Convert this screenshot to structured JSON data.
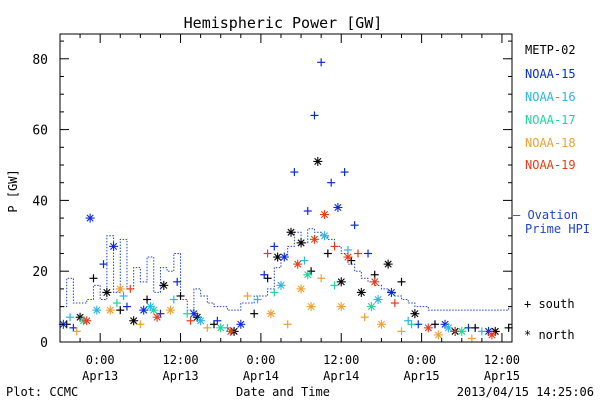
{
  "chart_data": {
    "type": "scatter",
    "title": "Hemispheric Power [GW]",
    "ylabel": "P [GW]",
    "xlabel": "Date and Time",
    "xlim": [
      "2013-04-12 18:00",
      "2013-04-15 13:30"
    ],
    "ylim": [
      0,
      87
    ],
    "y_ticks": [
      0,
      20,
      40,
      60,
      80
    ],
    "x_ticks": [
      {
        "t": "2013-04-13 00:00",
        "label1": "0:00",
        "label2": "Apr13"
      },
      {
        "t": "2013-04-13 12:00",
        "label1": "12:00",
        "label2": "Apr13"
      },
      {
        "t": "2013-04-14 00:00",
        "label1": "0:00",
        "label2": "Apr14"
      },
      {
        "t": "2013-04-14 12:00",
        "label1": "12:00",
        "label2": "Apr14"
      },
      {
        "t": "2013-04-15 00:00",
        "label1": "0:00",
        "label2": "Apr15"
      },
      {
        "t": "2013-04-15 12:00",
        "label1": "12:00",
        "label2": "Apr15"
      }
    ],
    "legend_placement": "right",
    "series": [
      {
        "name": "METP-02",
        "color": "#000000",
        "points": [
          [
            "2013-04-12 19:00",
            5,
            "+"
          ],
          [
            "2013-04-12 21:00",
            7,
            "*"
          ],
          [
            "2013-04-12 23:00",
            18,
            "+"
          ],
          [
            "2013-04-13 01:00",
            14,
            "*"
          ],
          [
            "2013-04-13 03:00",
            9,
            "+"
          ],
          [
            "2013-04-13 05:00",
            6,
            "*"
          ],
          [
            "2013-04-13 07:00",
            12,
            "+"
          ],
          [
            "2013-04-13 09:30",
            16,
            "*"
          ],
          [
            "2013-04-13 12:00",
            13,
            "+"
          ],
          [
            "2013-04-13 14:30",
            7,
            "*"
          ],
          [
            "2013-04-13 17:00",
            5,
            "+"
          ],
          [
            "2013-04-13 20:00",
            3,
            "*"
          ],
          [
            "2013-04-13 23:00",
            8,
            "+"
          ],
          [
            "2013-04-14 01:00",
            18,
            "+"
          ],
          [
            "2013-04-14 02:30",
            24,
            "*"
          ],
          [
            "2013-04-14 04:30",
            31,
            "*"
          ],
          [
            "2013-04-14 06:00",
            28,
            "*"
          ],
          [
            "2013-04-14 07:30",
            20,
            "+"
          ],
          [
            "2013-04-14 08:30",
            51,
            "*"
          ],
          [
            "2013-04-14 10:00",
            25,
            "+"
          ],
          [
            "2013-04-14 12:00",
            17,
            "*"
          ],
          [
            "2013-04-14 13:30",
            23,
            "+"
          ],
          [
            "2013-04-14 15:00",
            14,
            "*"
          ],
          [
            "2013-04-14 17:00",
            19,
            "+"
          ],
          [
            "2013-04-14 19:00",
            22,
            "*"
          ],
          [
            "2013-04-14 21:00",
            17,
            "+"
          ],
          [
            "2013-04-14 23:00",
            8,
            "*"
          ],
          [
            "2013-04-15 02:00",
            5,
            "+"
          ],
          [
            "2013-04-15 05:00",
            3,
            "*"
          ],
          [
            "2013-04-15 08:00",
            4,
            "+"
          ],
          [
            "2013-04-15 11:00",
            3,
            "*"
          ],
          [
            "2013-04-15 13:00",
            4,
            "+"
          ]
        ]
      },
      {
        "name": "NOAA-15",
        "color": "#0a2bd6",
        "points": [
          [
            "2013-04-12 18:30",
            5,
            "*"
          ],
          [
            "2013-04-12 20:00",
            4,
            "+"
          ],
          [
            "2013-04-12 22:30",
            35,
            "*"
          ],
          [
            "2013-04-13 00:30",
            22,
            "+"
          ],
          [
            "2013-04-13 02:00",
            27,
            "*"
          ],
          [
            "2013-04-13 04:00",
            10,
            "+"
          ],
          [
            "2013-04-13 06:30",
            9,
            "*"
          ],
          [
            "2013-04-13 09:00",
            8,
            "+"
          ],
          [
            "2013-04-13 11:30",
            17,
            "+"
          ],
          [
            "2013-04-13 14:00",
            8,
            "*"
          ],
          [
            "2013-04-13 17:30",
            6,
            "+"
          ],
          [
            "2013-04-13 21:00",
            5,
            "*"
          ],
          [
            "2013-04-14 00:30",
            19,
            "+"
          ],
          [
            "2013-04-14 02:00",
            27,
            "+"
          ],
          [
            "2013-04-14 03:30",
            24,
            "*"
          ],
          [
            "2013-04-14 05:00",
            48,
            "+"
          ],
          [
            "2013-04-14 07:00",
            37,
            "+"
          ],
          [
            "2013-04-14 08:00",
            64,
            "+"
          ],
          [
            "2013-04-14 09:00",
            79,
            "+"
          ],
          [
            "2013-04-14 10:30",
            45,
            "+"
          ],
          [
            "2013-04-14 11:30",
            38,
            "*"
          ],
          [
            "2013-04-14 12:30",
            48,
            "+"
          ],
          [
            "2013-04-14 14:00",
            33,
            "+"
          ],
          [
            "2013-04-14 16:00",
            25,
            "+"
          ],
          [
            "2013-04-14 19:30",
            14,
            "*"
          ],
          [
            "2013-04-14 23:30",
            5,
            "+"
          ],
          [
            "2013-04-15 03:30",
            5,
            "*"
          ],
          [
            "2013-04-15 07:00",
            4,
            "+"
          ],
          [
            "2013-04-15 10:00",
            3,
            "*"
          ]
        ]
      },
      {
        "name": "NOAA-16",
        "color": "#29b6e8",
        "points": [
          [
            "2013-04-12 19:30",
            7,
            "+"
          ],
          [
            "2013-04-12 23:30",
            9,
            "*"
          ],
          [
            "2013-04-13 03:30",
            13,
            "+"
          ],
          [
            "2013-04-13 07:30",
            10,
            "*"
          ],
          [
            "2013-04-13 11:00",
            12,
            "+"
          ],
          [
            "2013-04-13 15:00",
            6,
            "*"
          ],
          [
            "2013-04-13 19:00",
            4,
            "+"
          ],
          [
            "2013-04-13 23:30",
            12,
            "+"
          ],
          [
            "2013-04-14 03:00",
            16,
            "*"
          ],
          [
            "2013-04-14 06:30",
            23,
            "+"
          ],
          [
            "2013-04-14 09:30",
            30,
            "*"
          ],
          [
            "2013-04-14 13:00",
            26,
            "+"
          ],
          [
            "2013-04-14 17:30",
            12,
            "*"
          ],
          [
            "2013-04-14 22:00",
            6,
            "+"
          ],
          [
            "2013-04-15 04:00",
            4,
            "*"
          ],
          [
            "2013-04-15 09:00",
            3,
            "+"
          ]
        ]
      },
      {
        "name": "NOAA-17",
        "color": "#1ed698",
        "points": [
          [
            "2013-04-12 21:30",
            6,
            "*"
          ],
          [
            "2013-04-13 02:30",
            11,
            "+"
          ],
          [
            "2013-04-13 08:00",
            9,
            "*"
          ],
          [
            "2013-04-13 13:00",
            8,
            "+"
          ],
          [
            "2013-04-13 18:00",
            4,
            "*"
          ],
          [
            "2013-04-14 02:00",
            14,
            "+"
          ],
          [
            "2013-04-14 07:00",
            19,
            "*"
          ],
          [
            "2013-04-14 11:00",
            16,
            "+"
          ],
          [
            "2013-04-14 16:30",
            10,
            "*"
          ],
          [
            "2013-04-14 22:30",
            5,
            "+"
          ],
          [
            "2013-04-15 06:00",
            3,
            "*"
          ]
        ]
      },
      {
        "name": "NOAA-18",
        "color": "#f0a030",
        "points": [
          [
            "2013-04-12 20:30",
            3,
            "+"
          ],
          [
            "2013-04-13 01:30",
            9,
            "*"
          ],
          [
            "2013-04-13 03:00",
            15,
            "*"
          ],
          [
            "2013-04-13 06:00",
            5,
            "+"
          ],
          [
            "2013-04-13 10:30",
            9,
            "*"
          ],
          [
            "2013-04-13 16:00",
            4,
            "+"
          ],
          [
            "2013-04-13 22:00",
            13,
            "+"
          ],
          [
            "2013-04-14 01:30",
            8,
            "*"
          ],
          [
            "2013-04-14 04:00",
            5,
            "+"
          ],
          [
            "2013-04-14 06:00",
            15,
            "*"
          ],
          [
            "2013-04-14 07:30",
            10,
            "*"
          ],
          [
            "2013-04-14 09:00",
            18,
            "+"
          ],
          [
            "2013-04-14 12:00",
            10,
            "*"
          ],
          [
            "2013-04-14 15:30",
            7,
            "+"
          ],
          [
            "2013-04-14 18:00",
            5,
            "*"
          ],
          [
            "2013-04-14 21:00",
            3,
            "+"
          ],
          [
            "2013-04-15 02:30",
            2,
            "*"
          ],
          [
            "2013-04-15 07:30",
            1,
            "+"
          ]
        ]
      },
      {
        "name": "NOAA-19",
        "color": "#e83c18",
        "points": [
          [
            "2013-04-12 22:00",
            6,
            "*"
          ],
          [
            "2013-04-13 04:30",
            15,
            "+"
          ],
          [
            "2013-04-13 08:30",
            7,
            "*"
          ],
          [
            "2013-04-13 13:30",
            6,
            "+"
          ],
          [
            "2013-04-13 19:30",
            3,
            "*"
          ],
          [
            "2013-04-14 01:00",
            25,
            "+"
          ],
          [
            "2013-04-14 05:30",
            22,
            "*"
          ],
          [
            "2013-04-14 08:00",
            29,
            "*"
          ],
          [
            "2013-04-14 09:30",
            36,
            "*"
          ],
          [
            "2013-04-14 11:00",
            27,
            "+"
          ],
          [
            "2013-04-14 13:00",
            24,
            "*"
          ],
          [
            "2013-04-14 14:30",
            25,
            "+"
          ],
          [
            "2013-04-14 17:00",
            17,
            "*"
          ],
          [
            "2013-04-14 20:00",
            11,
            "+"
          ],
          [
            "2013-04-15 01:00",
            4,
            "*"
          ],
          [
            "2013-04-15 05:00",
            3,
            "+"
          ],
          [
            "2013-04-15 10:30",
            2,
            "*"
          ]
        ]
      }
    ],
    "ovation": {
      "name_line1": "— Ovation",
      "name_line2": "Prime HPI",
      "color": "#1f45c8",
      "steps": [
        [
          "2013-04-12 18:00",
          10
        ],
        [
          "2013-04-12 19:00",
          18
        ],
        [
          "2013-04-12 20:00",
          11
        ],
        [
          "2013-04-12 22:00",
          12
        ],
        [
          "2013-04-12 23:00",
          16
        ],
        [
          "2013-04-13 00:00",
          12
        ],
        [
          "2013-04-13 01:00",
          30
        ],
        [
          "2013-04-13 02:00",
          14
        ],
        [
          "2013-04-13 03:00",
          29
        ],
        [
          "2013-04-13 04:00",
          15
        ],
        [
          "2013-04-13 05:00",
          21
        ],
        [
          "2013-04-13 06:00",
          17
        ],
        [
          "2013-04-13 07:00",
          24
        ],
        [
          "2013-04-13 08:00",
          14
        ],
        [
          "2013-04-13 09:00",
          21
        ],
        [
          "2013-04-13 10:00",
          20
        ],
        [
          "2013-04-13 11:00",
          25
        ],
        [
          "2013-04-13 12:00",
          12
        ],
        [
          "2013-04-13 13:00",
          9
        ],
        [
          "2013-04-13 14:00",
          15
        ],
        [
          "2013-04-13 15:00",
          13
        ],
        [
          "2013-04-13 16:00",
          11
        ],
        [
          "2013-04-13 17:00",
          10
        ],
        [
          "2013-04-13 19:00",
          9
        ],
        [
          "2013-04-13 21:00",
          11
        ],
        [
          "2013-04-13 23:00",
          13
        ],
        [
          "2013-04-14 01:00",
          15
        ],
        [
          "2013-04-14 02:00",
          21
        ],
        [
          "2013-04-14 03:00",
          24
        ],
        [
          "2013-04-14 04:00",
          27
        ],
        [
          "2013-04-14 05:00",
          31
        ],
        [
          "2013-04-14 06:00",
          28
        ],
        [
          "2013-04-14 07:00",
          32
        ],
        [
          "2013-04-14 08:00",
          31
        ],
        [
          "2013-04-14 09:00",
          30
        ],
        [
          "2013-04-14 10:00",
          29
        ],
        [
          "2013-04-14 11:00",
          27
        ],
        [
          "2013-04-14 12:00",
          25
        ],
        [
          "2013-04-14 13:00",
          22
        ],
        [
          "2013-04-14 14:00",
          20
        ],
        [
          "2013-04-14 15:00",
          18
        ],
        [
          "2013-04-14 16:00",
          17
        ],
        [
          "2013-04-14 17:00",
          16
        ],
        [
          "2013-04-14 18:00",
          15
        ],
        [
          "2013-04-14 19:00",
          14
        ],
        [
          "2013-04-14 20:00",
          13
        ],
        [
          "2013-04-14 21:00",
          12
        ],
        [
          "2013-04-14 22:00",
          11
        ],
        [
          "2013-04-14 23:00",
          10
        ],
        [
          "2013-04-15 01:00",
          9
        ],
        [
          "2013-04-15 13:00",
          10
        ],
        [
          "2013-04-15 13:30",
          10
        ]
      ]
    },
    "marker_key": [
      {
        "symbol": "+",
        "label": "south"
      },
      {
        "symbol": "*",
        "label": "north"
      }
    ]
  },
  "footer": {
    "plot_credit": "Plot: CCMC",
    "timestamp": "2013/04/15 14:25:06"
  }
}
